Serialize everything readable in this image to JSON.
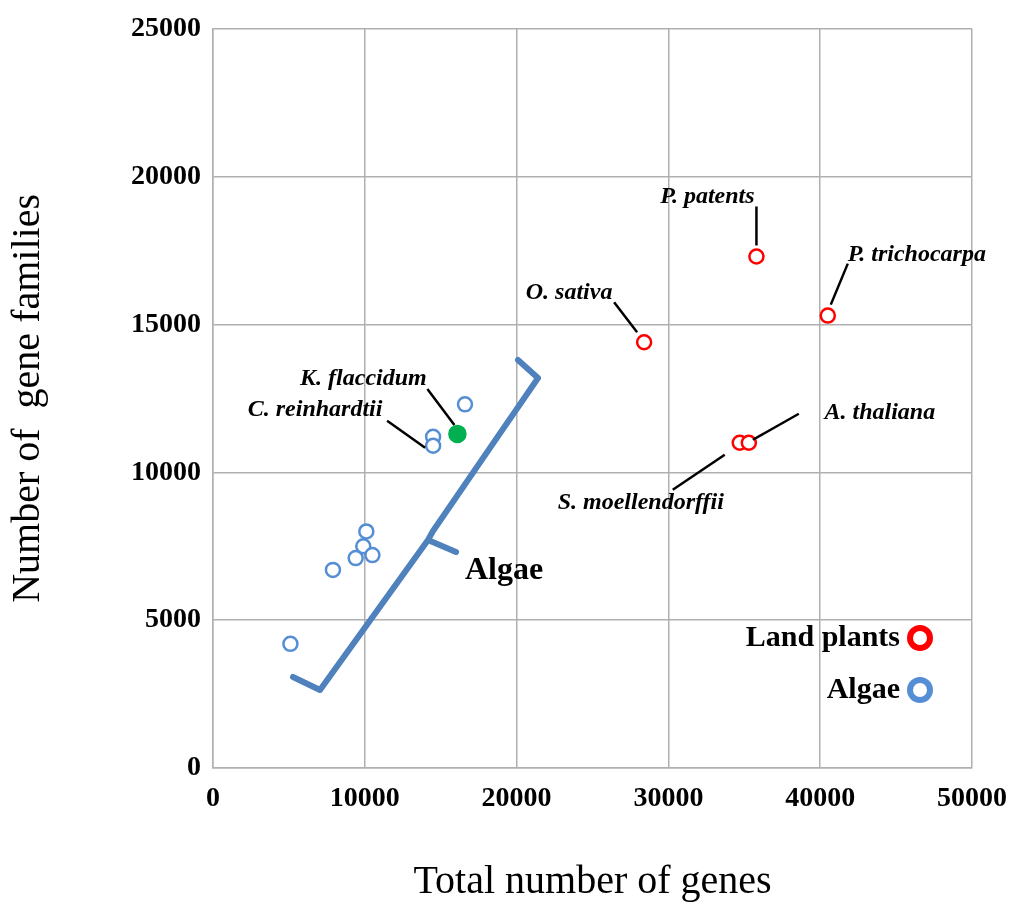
{
  "chart_data": {
    "type": "scatter",
    "xlabel": "Total number of genes",
    "ylabel": "Number of  gene families",
    "xlim": [
      0,
      50000
    ],
    "xticks": [
      0,
      10000,
      20000,
      30000,
      40000,
      50000
    ],
    "ylim": [
      0,
      25000
    ],
    "yticks": [
      0,
      5000,
      10000,
      15000,
      20000,
      25000
    ],
    "grid": true,
    "legend": "bottom right",
    "marker": "circle",
    "series": [
      {
        "name": "Land plants",
        "color": "#ff0000",
        "x": [
          35800,
          40500,
          28400,
          34700,
          35300
        ],
        "values": [
          17300,
          15300,
          14400,
          11000,
          11000
        ]
      },
      {
        "name": "Algae",
        "color": "#558ed5",
        "x": [
          16600,
          14500,
          14500,
          10100,
          9900,
          10500,
          9400,
          7900,
          5100
        ],
        "values": [
          12300,
          11200,
          10900,
          8000,
          7500,
          7200,
          7100,
          6700,
          4200
        ]
      },
      {
        "color": "#00b050",
        "x": [
          16100
        ],
        "values": [
          11300
        ]
      }
    ],
    "annotations": [
      {
        "text": "O. sativa",
        "x": 28400,
        "y": 14400
      },
      {
        "text": "P. patents",
        "x": 35800,
        "y": 17300
      },
      {
        "text": "P. trichocarpa",
        "x": 40500,
        "y": 15300
      },
      {
        "text": "K. flaccidum",
        "x": 16100,
        "y": 11300
      },
      {
        "text": "C. reinhardtii",
        "x": 14500,
        "y": 10900
      },
      {
        "text": "A. thaliana",
        "x": 35300,
        "y": 11000
      },
      {
        "text": "S. moellendorffii",
        "x": 34700,
        "y": 11000
      },
      "Algae"
    ]
  }
}
